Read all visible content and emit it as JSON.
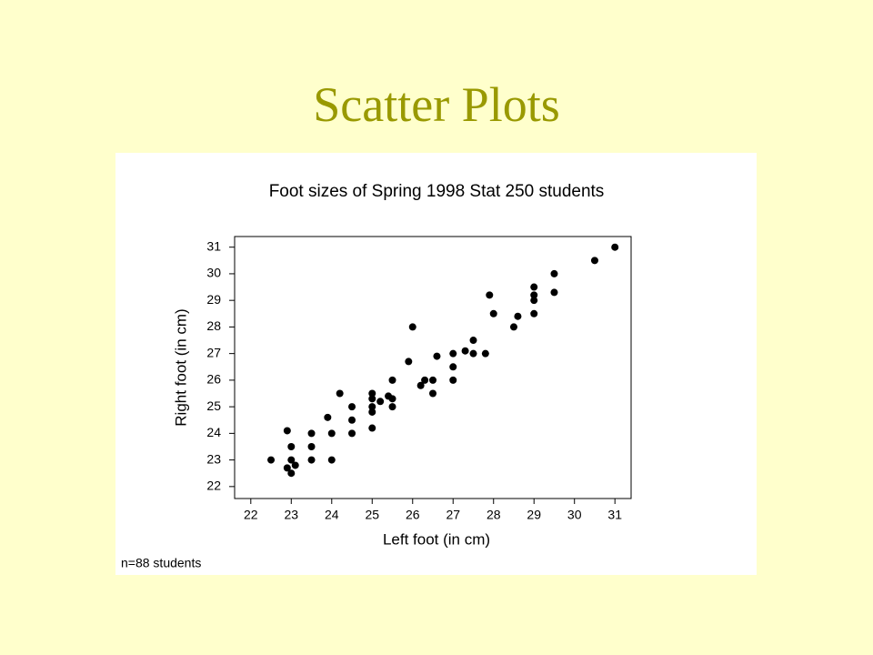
{
  "slide_title": "Scatter Plots",
  "chart_data": {
    "type": "scatter",
    "title": "Foot sizes of Spring 1998 Stat 250 students",
    "x_label": "Left foot (in cm)",
    "y_label": "Right foot (in cm)",
    "annotation": "n=88 students",
    "color": "#000000",
    "xlim": [
      21.6,
      31.4
    ],
    "ylim": [
      21.55,
      31.4
    ],
    "xticks": [
      22,
      23,
      24,
      25,
      26,
      27,
      28,
      29,
      30,
      31
    ],
    "yticks": [
      22,
      23,
      24,
      25,
      26,
      27,
      28,
      29,
      30,
      31
    ],
    "x": [
      22.5,
      22.9,
      22.9,
      23,
      23,
      23,
      23.1,
      23.5,
      23.5,
      23.5,
      23.9,
      24,
      24,
      24.2,
      24.5,
      24.5,
      24.5,
      25,
      25,
      25,
      25,
      25,
      25.2,
      25.4,
      25.5,
      25.5,
      25.5,
      25.9,
      26,
      26.2,
      26.3,
      26.5,
      26.5,
      26.6,
      27,
      27,
      27,
      27.3,
      27.5,
      27.5,
      27.8,
      27.9,
      28,
      28.5,
      28.6,
      29,
      29,
      29,
      29,
      29.5,
      29.5,
      30.5,
      31
    ],
    "values": [
      23,
      24.1,
      22.7,
      23.5,
      23,
      22.5,
      22.8,
      24,
      23.5,
      23,
      24.6,
      24,
      23,
      25.5,
      25,
      24.5,
      24,
      25.5,
      25.3,
      25,
      24.8,
      24.2,
      25.2,
      25.4,
      25.3,
      25,
      26,
      26.7,
      28,
      25.8,
      26,
      26,
      25.5,
      26.9,
      27,
      26.5,
      26,
      27.1,
      27.5,
      27,
      27,
      29.2,
      28.5,
      28,
      28.4,
      29.5,
      29.2,
      29,
      28.5,
      30,
      29.3,
      30.5,
      31
    ]
  }
}
